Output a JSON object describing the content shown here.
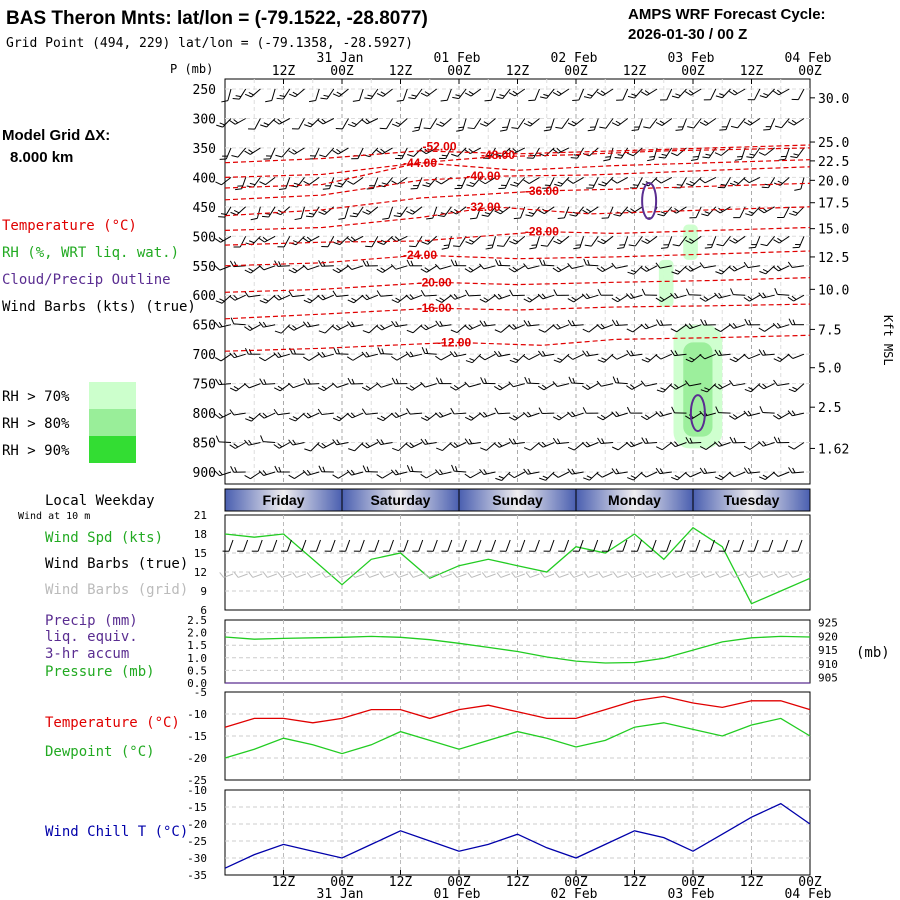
{
  "header": {
    "station_title": "BAS Theron Mnts:  lat/lon = (-79.1522, -28.8077)",
    "grid_point": "Grid Point (494, 229) lat/lon = (-79.1358, -28.5927)",
    "cycle_label": "AMPS WRF Forecast Cycle:",
    "cycle_value": "2026-01-30 / 00  Z"
  },
  "model_grid": {
    "label": "Model Grid ΔX:",
    "value": "8.000 km"
  },
  "time_axis": {
    "hour_labels": [
      "12Z",
      "00Z",
      "12Z",
      "00Z",
      "12Z",
      "00Z",
      "12Z",
      "00Z",
      "12Z",
      "00Z"
    ],
    "date_labels": [
      "31 Jan",
      "01 Feb",
      "02 Feb",
      "03 Feb",
      "04 Feb"
    ]
  },
  "legend": {
    "temperature": "Temperature (°C)",
    "rh": "RH (%, WRT liq. wat.)",
    "cloud": "Cloud/Precip Outline",
    "wind": "Wind Barbs (kts) (true)",
    "rh_levels": [
      "RH > 70%",
      "RH > 80%",
      "RH > 90%"
    ],
    "rh_colors": [
      "#ccffcc",
      "#99ee99",
      "#33dd33"
    ]
  },
  "colors": {
    "temperature": "#e00000",
    "dewpoint": "#22cc22",
    "wind_speed": "#22cc22",
    "pressure": "#22cc22",
    "wind_chill": "#0000aa",
    "cloud_outline": "#5a2d91",
    "grid_barbs": "#bbbbbb",
    "weekday_band": "#4a5fb0"
  },
  "panels": {
    "weekday": {
      "label": "Local Weekday",
      "wind_label": "Wind at 10 m",
      "days": [
        "Friday",
        "Saturday",
        "Sunday",
        "Monday",
        "Tuesday"
      ]
    },
    "wind": {
      "labels": [
        "Wind Spd (kts)",
        "Wind Barbs (true)",
        "Wind Barbs (grid)"
      ]
    },
    "precip": {
      "labels": [
        "Precip (mm)",
        "liq. equiv.",
        "3-hr accum",
        "Pressure (mb)"
      ],
      "right_unit": "(mb)"
    },
    "temp": {
      "labels": [
        "Temperature (°C)",
        "Dewpoint (°C)"
      ]
    },
    "chill": {
      "labels": [
        "Wind Chill T (°C)"
      ]
    }
  },
  "chart_data": [
    {
      "type": "time-height cross-section",
      "title": "BAS Theron Mnts",
      "ylabel": "P (mb)",
      "right_label": "Kft MSL",
      "x_hours": [
        0,
        120
      ],
      "pressure_levels": [
        250,
        300,
        350,
        400,
        450,
        500,
        550,
        600,
        650,
        700,
        750,
        800,
        850,
        900
      ],
      "kft_labels": [
        "30.0",
        "25.0",
        "22.5",
        "20.0",
        "17.5",
        "15.0",
        "12.5",
        "10.0",
        "7.5",
        "5.0",
        "2.5",
        "1.62"
      ],
      "kft_pressures": [
        265,
        340,
        372,
        405,
        443,
        487,
        535,
        590,
        658,
        723,
        790,
        860
      ],
      "isotherms": [
        {
          "label": "-52.00",
          "at_hours": 44,
          "at_p": 348,
          "points": [
            [
              0,
              375
            ],
            [
              20,
              368
            ],
            [
              40,
              355
            ],
            [
              60,
              360
            ],
            [
              80,
              355
            ],
            [
              100,
              350
            ],
            [
              120,
              345
            ]
          ]
        },
        {
          "label": "-48.00",
          "at_hours": 56,
          "at_p": 362,
          "points": [
            [
              0,
              400
            ],
            [
              20,
              395
            ],
            [
              40,
              375
            ],
            [
              55,
              365
            ],
            [
              70,
              362
            ],
            [
              90,
              355
            ],
            [
              120,
              350
            ]
          ]
        },
        {
          "label": "-44.00",
          "at_hours": 40,
          "at_p": 376,
          "points": [
            [
              0,
              418
            ],
            [
              20,
              412
            ],
            [
              40,
              375
            ],
            [
              60,
              388
            ],
            [
              80,
              380
            ],
            [
              100,
              375
            ],
            [
              120,
              370
            ]
          ]
        },
        {
          "label": "-40.00",
          "at_hours": 53,
          "at_p": 398,
          "points": [
            [
              0,
              438
            ],
            [
              20,
              430
            ],
            [
              40,
              405
            ],
            [
              55,
              398
            ],
            [
              75,
              396
            ],
            [
              100,
              388
            ],
            [
              120,
              382
            ]
          ]
        },
        {
          "label": "-36.00",
          "at_hours": 65,
          "at_p": 423,
          "points": [
            [
              0,
              465
            ],
            [
              20,
              455
            ],
            [
              40,
              435
            ],
            [
              65,
              423
            ],
            [
              80,
              420
            ],
            [
              100,
              415
            ],
            [
              120,
              410
            ]
          ]
        },
        {
          "label": "-32.00",
          "at_hours": 53,
          "at_p": 450,
          "points": [
            [
              0,
              490
            ],
            [
              20,
              485
            ],
            [
              40,
              468
            ],
            [
              55,
              450
            ],
            [
              75,
              462
            ],
            [
              100,
              455
            ],
            [
              120,
              450
            ]
          ]
        },
        {
          "label": "-28.00",
          "at_hours": 65,
          "at_p": 492,
          "points": [
            [
              0,
              515
            ],
            [
              20,
              510
            ],
            [
              40,
              508
            ],
            [
              65,
              492
            ],
            [
              80,
              495
            ],
            [
              100,
              490
            ],
            [
              120,
              485
            ]
          ]
        },
        {
          "label": "-24.00",
          "at_hours": 40,
          "at_p": 532,
          "points": [
            [
              0,
              550
            ],
            [
              20,
              545
            ],
            [
              40,
              532
            ],
            [
              60,
              538
            ],
            [
              80,
              535
            ],
            [
              100,
              530
            ],
            [
              120,
              525
            ]
          ]
        },
        {
          "label": "-20.00",
          "at_hours": 43,
          "at_p": 578,
          "points": [
            [
              0,
              595
            ],
            [
              20,
              590
            ],
            [
              43,
              578
            ],
            [
              60,
              582
            ],
            [
              80,
              578
            ],
            [
              100,
              575
            ],
            [
              120,
              570
            ]
          ]
        },
        {
          "label": "-16.00",
          "at_hours": 43,
          "at_p": 622,
          "points": [
            [
              0,
              640
            ],
            [
              20,
              632
            ],
            [
              43,
              622
            ],
            [
              60,
              625
            ],
            [
              80,
              620
            ],
            [
              100,
              618
            ],
            [
              120,
              615
            ]
          ]
        },
        {
          "label": "-12.00",
          "at_hours": 47,
          "at_p": 680,
          "points": [
            [
              0,
              695
            ],
            [
              20,
              690
            ],
            [
              47,
              680
            ],
            [
              65,
              685
            ],
            [
              80,
              675
            ],
            [
              100,
              672
            ],
            [
              120,
              668
            ]
          ]
        }
      ],
      "rh_regions": [
        {
          "level": "RH > 70%",
          "hours": [
            92,
            102
          ],
          "p_range": [
            650,
            860
          ]
        },
        {
          "level": "RH > 80%",
          "hours": [
            94,
            100
          ],
          "p_range": [
            680,
            840
          ]
        },
        {
          "level": "RH > 70%",
          "hours": [
            89,
            92
          ],
          "p_range": [
            540,
            620
          ]
        },
        {
          "level": "RH > 70%",
          "hours": [
            94,
            97
          ],
          "p_range": [
            480,
            540
          ]
        }
      ],
      "cloud_outlines": [
        {
          "hours": 87,
          "p": 440
        },
        {
          "hours": 97,
          "p": 800
        }
      ]
    },
    {
      "type": "line",
      "title": "Wind at 10 m",
      "ylabel": "Wind Spd (kts)",
      "ylim": [
        6,
        21
      ],
      "y_ticks": [
        "21",
        "18",
        "15",
        "12",
        "9",
        "6"
      ],
      "x_hours": [
        0,
        6,
        12,
        18,
        24,
        30,
        36,
        42,
        48,
        54,
        60,
        66,
        72,
        78,
        84,
        90,
        96,
        102,
        108,
        114,
        120
      ],
      "series": [
        {
          "name": "Wind Spd (kts)",
          "values": [
            18,
            17.5,
            18,
            14,
            10,
            14,
            15,
            11,
            13,
            14,
            13,
            12,
            16,
            15,
            18,
            14,
            19,
            16,
            7,
            9,
            11
          ]
        }
      ]
    },
    {
      "type": "line",
      "title": "Precip / Pressure",
      "ylabel": "Precip (mm)",
      "ylim": [
        0,
        2.5
      ],
      "y_ticks": [
        "2.5",
        "2.0",
        "1.5",
        "1.0",
        "0.5",
        "0.0"
      ],
      "right_ticks": [
        "925",
        "920",
        "915",
        "910",
        "905"
      ],
      "right_ylim": [
        903,
        926
      ],
      "x_hours": [
        0,
        6,
        12,
        18,
        24,
        30,
        36,
        42,
        48,
        54,
        60,
        66,
        72,
        78,
        84,
        90,
        96,
        102,
        108,
        114,
        120
      ],
      "series": [
        {
          "name": "Pressure (mb)",
          "values": [
            919.8,
            919,
            919.3,
            919.5,
            919.7,
            920,
            919.7,
            918.8,
            917.5,
            916,
            914.5,
            912.5,
            911,
            910.3,
            910.5,
            912,
            915,
            918,
            919.5,
            920,
            919.8
          ]
        },
        {
          "name": "Precip (mm)",
          "values": [
            0,
            0,
            0,
            0,
            0,
            0,
            0,
            0,
            0,
            0,
            0,
            0,
            0,
            0,
            0,
            0,
            0,
            0,
            0,
            0,
            0
          ]
        }
      ]
    },
    {
      "type": "line",
      "title": "Temperature / Dewpoint",
      "ylabel": "Temperature (°C)",
      "ylim": [
        -25,
        -5
      ],
      "y_ticks": [
        "-5",
        "-10",
        "-15",
        "-20",
        "-25"
      ],
      "x_hours": [
        0,
        6,
        12,
        18,
        24,
        30,
        36,
        42,
        48,
        54,
        60,
        66,
        72,
        78,
        84,
        90,
        96,
        102,
        108,
        114,
        120
      ],
      "series": [
        {
          "name": "Temperature (°C)",
          "values": [
            -13,
            -11,
            -11,
            -12,
            -11,
            -9,
            -9,
            -11,
            -9,
            -8,
            -9.5,
            -11,
            -11,
            -9,
            -7,
            -6,
            -7.5,
            -8.5,
            -7,
            -7,
            -9
          ]
        },
        {
          "name": "Dewpoint (°C)",
          "values": [
            -20,
            -18,
            -15.5,
            -17,
            -19,
            -17,
            -14,
            -16,
            -18,
            -16,
            -14,
            -15.5,
            -17.5,
            -16,
            -13,
            -12,
            -13.5,
            -15,
            -12.5,
            -11,
            -15
          ]
        }
      ]
    },
    {
      "type": "line",
      "title": "Wind Chill",
      "ylabel": "Wind Chill T (°C)",
      "ylim": [
        -35,
        -10
      ],
      "y_ticks": [
        "-10",
        "-15",
        "-20",
        "-25",
        "-30",
        "-35"
      ],
      "x_hours": [
        0,
        6,
        12,
        18,
        24,
        30,
        36,
        42,
        48,
        54,
        60,
        66,
        72,
        78,
        84,
        90,
        96,
        102,
        108,
        114,
        120
      ],
      "series": [
        {
          "name": "Wind Chill T (°C)",
          "values": [
            -33,
            -29,
            -26,
            -28,
            -30,
            -26,
            -22,
            -25,
            -28,
            -26,
            -23,
            -27,
            -30,
            -26,
            -22,
            -24,
            -28,
            -23,
            -18,
            -14,
            -20
          ]
        }
      ]
    }
  ]
}
